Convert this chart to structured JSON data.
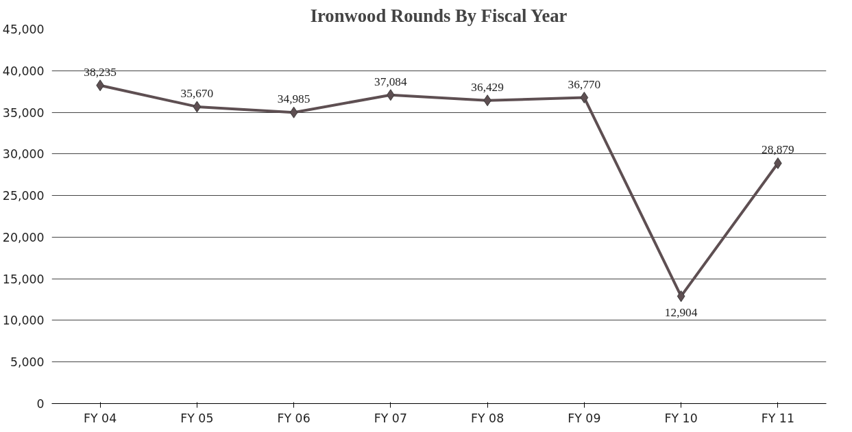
{
  "chart_data": {
    "type": "line",
    "title": "Ironwood Rounds By Fiscal Year",
    "categories": [
      "FY 04",
      "FY 05",
      "FY 06",
      "FY 07",
      "FY 08",
      "FY 09",
      "FY 10",
      "FY 11"
    ],
    "series": [
      {
        "color": "#5e4f52",
        "values": [
          38235,
          35670,
          34985,
          37084,
          36429,
          36770,
          12904,
          28879
        ],
        "value_labels": [
          "38,235",
          "35,670",
          "34,985",
          "37,084",
          "36,429",
          "36,770",
          "12,904",
          "28,879"
        ]
      }
    ],
    "ylim": [
      0,
      45000
    ],
    "yticks": [
      {
        "value": 0,
        "label": "0"
      },
      {
        "value": 5000,
        "label": "5,000"
      },
      {
        "value": 10000,
        "label": "10,000"
      },
      {
        "value": 15000,
        "label": "15,000"
      },
      {
        "value": 20000,
        "label": "20,000"
      },
      {
        "value": 25000,
        "label": "25,000"
      },
      {
        "value": 30000,
        "label": "30,000"
      },
      {
        "value": 35000,
        "label": "35,000"
      },
      {
        "value": 40000,
        "label": "40,000"
      },
      {
        "value": 45000,
        "label": "45,000"
      }
    ],
    "grid": "y",
    "marker": "diamond",
    "line_style": "solid"
  }
}
